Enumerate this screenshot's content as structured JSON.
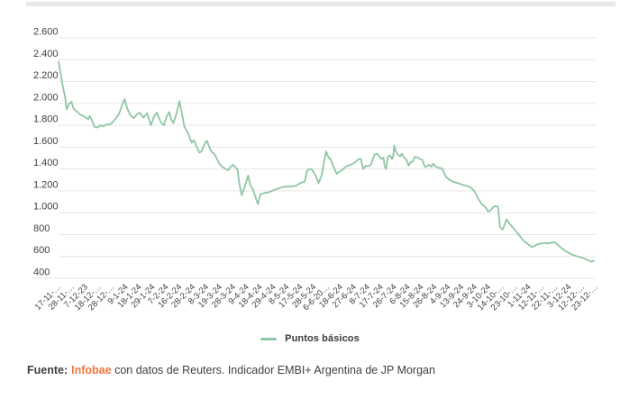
{
  "page": {
    "background": "#ffffff",
    "top_bar_color": "#e8e8e8"
  },
  "legend": {
    "label": "Puntos básicos",
    "swatch_color": "#8fc6a4"
  },
  "footer": {
    "prefix": "Fuente:",
    "brand": "Infobae",
    "rest": " con datos de Reuters. Indicador EMBI+ Argentina de JP Morgan",
    "brand_color": "#f4743b",
    "text_color": "#404040"
  },
  "chart_data": {
    "type": "line",
    "title": "",
    "xlabel": "",
    "ylabel": "",
    "legend_position": "bottom",
    "grid": "horizontal-only",
    "grid_color": "#e6e6e6",
    "axis_text_color": "#3f3f3f",
    "ylim": [
      400,
      2600
    ],
    "y_tick_values": [
      2600,
      2400,
      2200,
      2000,
      1800,
      1600,
      1400,
      1200,
      1000,
      800,
      600,
      400
    ],
    "y_tick_labels": [
      "2.600",
      "2.400",
      "2.200",
      "2.000",
      "1.800",
      "1.600",
      "1.400",
      "1.200",
      "1.000",
      "800",
      "600",
      "400"
    ],
    "x_tick_labels": [
      "17-11-…",
      "28-11-…",
      "7-12-23",
      "18-12-…",
      "28-12-…",
      "9-1-24",
      "18-1-24",
      "29-1-24",
      "7-2-24",
      "16-2-24",
      "28-2-24",
      "8-3-24",
      "19-3-24",
      "28-3-24",
      "9-4-24",
      "18-4-24",
      "29-4-24",
      "8-5-24",
      "17-5-24",
      "28-5-24",
      "6-6-20…",
      "18-6-24",
      "27-6-24",
      "8-7-24",
      "17-7-24",
      "26-7-24",
      "6-8-24",
      "15-8-24",
      "26-8-24",
      "4-9-24",
      "13-9-24",
      "24-9-24",
      "3-10-24",
      "14-10-…",
      "23-10-…",
      "1-11-24",
      "12-11-…",
      "22-11-…",
      "3-12-24",
      "12-12-…",
      "23-12-…"
    ],
    "series": [
      {
        "name": "Puntos básicos",
        "color": "#8fc6a4",
        "points": [
          [
            0,
            2380
          ],
          [
            0.004,
            2270
          ],
          [
            0.008,
            2150
          ],
          [
            0.012,
            2060
          ],
          [
            0.015,
            1945
          ],
          [
            0.02,
            2000
          ],
          [
            0.024,
            2015
          ],
          [
            0.028,
            1950
          ],
          [
            0.033,
            1930
          ],
          [
            0.04,
            1900
          ],
          [
            0.048,
            1880
          ],
          [
            0.055,
            1855
          ],
          [
            0.058,
            1885
          ],
          [
            0.062,
            1845
          ],
          [
            0.067,
            1785
          ],
          [
            0.073,
            1780
          ],
          [
            0.078,
            1800
          ],
          [
            0.084,
            1790
          ],
          [
            0.09,
            1810
          ],
          [
            0.095,
            1805
          ],
          [
            0.1,
            1825
          ],
          [
            0.106,
            1860
          ],
          [
            0.112,
            1900
          ],
          [
            0.117,
            1965
          ],
          [
            0.123,
            2040
          ],
          [
            0.128,
            1950
          ],
          [
            0.134,
            1890
          ],
          [
            0.14,
            1865
          ],
          [
            0.146,
            1900
          ],
          [
            0.151,
            1915
          ],
          [
            0.158,
            1870
          ],
          [
            0.165,
            1910
          ],
          [
            0.172,
            1800
          ],
          [
            0.178,
            1885
          ],
          [
            0.183,
            1915
          ],
          [
            0.19,
            1830
          ],
          [
            0.196,
            1800
          ],
          [
            0.202,
            1890
          ],
          [
            0.206,
            1920
          ],
          [
            0.21,
            1850
          ],
          [
            0.214,
            1820
          ],
          [
            0.22,
            1915
          ],
          [
            0.225,
            2020
          ],
          [
            0.23,
            1900
          ],
          [
            0.234,
            1790
          ],
          [
            0.238,
            1755
          ],
          [
            0.241,
            1730
          ],
          [
            0.244,
            1690
          ],
          [
            0.248,
            1640
          ],
          [
            0.252,
            1665
          ],
          [
            0.256,
            1615
          ],
          [
            0.262,
            1550
          ],
          [
            0.266,
            1560
          ],
          [
            0.271,
            1620
          ],
          [
            0.276,
            1660
          ],
          [
            0.28,
            1610
          ],
          [
            0.285,
            1555
          ],
          [
            0.29,
            1540
          ],
          [
            0.295,
            1490
          ],
          [
            0.3,
            1445
          ],
          [
            0.305,
            1420
          ],
          [
            0.311,
            1400
          ],
          [
            0.316,
            1390
          ],
          [
            0.32,
            1420
          ],
          [
            0.325,
            1440
          ],
          [
            0.329,
            1415
          ],
          [
            0.333,
            1400
          ],
          [
            0.336,
            1280
          ],
          [
            0.341,
            1160
          ],
          [
            0.346,
            1230
          ],
          [
            0.353,
            1340
          ],
          [
            0.357,
            1250
          ],
          [
            0.362,
            1210
          ],
          [
            0.371,
            1080
          ],
          [
            0.376,
            1170
          ],
          [
            0.383,
            1180
          ],
          [
            0.39,
            1185
          ],
          [
            0.4,
            1205
          ],
          [
            0.408,
            1220
          ],
          [
            0.417,
            1235
          ],
          [
            0.425,
            1240
          ],
          [
            0.433,
            1240
          ],
          [
            0.442,
            1245
          ],
          [
            0.45,
            1270
          ],
          [
            0.458,
            1285
          ],
          [
            0.463,
            1385
          ],
          [
            0.467,
            1400
          ],
          [
            0.472,
            1395
          ],
          [
            0.477,
            1355
          ],
          [
            0.481,
            1310
          ],
          [
            0.484,
            1270
          ],
          [
            0.49,
            1345
          ],
          [
            0.494,
            1460
          ],
          [
            0.498,
            1560
          ],
          [
            0.503,
            1500
          ],
          [
            0.506,
            1495
          ],
          [
            0.51,
            1440
          ],
          [
            0.515,
            1390
          ],
          [
            0.518,
            1355
          ],
          [
            0.524,
            1380
          ],
          [
            0.53,
            1400
          ],
          [
            0.536,
            1425
          ],
          [
            0.542,
            1435
          ],
          [
            0.548,
            1450
          ],
          [
            0.553,
            1465
          ],
          [
            0.558,
            1490
          ],
          [
            0.563,
            1490
          ],
          [
            0.567,
            1400
          ],
          [
            0.572,
            1430
          ],
          [
            0.577,
            1425
          ],
          [
            0.581,
            1435
          ],
          [
            0.588,
            1530
          ],
          [
            0.593,
            1540
          ],
          [
            0.597,
            1520
          ],
          [
            0.601,
            1490
          ],
          [
            0.605,
            1505
          ],
          [
            0.607,
            1425
          ],
          [
            0.61,
            1400
          ],
          [
            0.613,
            1510
          ],
          [
            0.617,
            1525
          ],
          [
            0.621,
            1490
          ],
          [
            0.623,
            1520
          ],
          [
            0.625,
            1615
          ],
          [
            0.628,
            1560
          ],
          [
            0.632,
            1530
          ],
          [
            0.636,
            1515
          ],
          [
            0.639,
            1540
          ],
          [
            0.643,
            1505
          ],
          [
            0.647,
            1490
          ],
          [
            0.652,
            1430
          ],
          [
            0.655,
            1460
          ],
          [
            0.66,
            1470
          ],
          [
            0.663,
            1510
          ],
          [
            0.669,
            1505
          ],
          [
            0.673,
            1490
          ],
          [
            0.677,
            1485
          ],
          [
            0.682,
            1420
          ],
          [
            0.686,
            1425
          ],
          [
            0.69,
            1440
          ],
          [
            0.694,
            1420
          ],
          [
            0.698,
            1450
          ],
          [
            0.702,
            1420
          ],
          [
            0.708,
            1410
          ],
          [
            0.714,
            1405
          ],
          [
            0.721,
            1330
          ],
          [
            0.728,
            1300
          ],
          [
            0.736,
            1280
          ],
          [
            0.744,
            1270
          ],
          [
            0.752,
            1255
          ],
          [
            0.76,
            1245
          ],
          [
            0.768,
            1230
          ],
          [
            0.775,
            1190
          ],
          [
            0.781,
            1130
          ],
          [
            0.788,
            1080
          ],
          [
            0.795,
            1050
          ],
          [
            0.8,
            1010
          ],
          [
            0.805,
            1025
          ],
          [
            0.809,
            1050
          ],
          [
            0.813,
            1060
          ],
          [
            0.818,
            1055
          ],
          [
            0.822,
            870
          ],
          [
            0.827,
            845
          ],
          [
            0.834,
            940
          ],
          [
            0.839,
            905
          ],
          [
            0.843,
            880
          ],
          [
            0.849,
            845
          ],
          [
            0.855,
            810
          ],
          [
            0.862,
            765
          ],
          [
            0.869,
            730
          ],
          [
            0.876,
            705
          ],
          [
            0.881,
            685
          ],
          [
            0.886,
            695
          ],
          [
            0.892,
            712
          ],
          [
            0.899,
            718
          ],
          [
            0.906,
            722
          ],
          [
            0.913,
            720
          ],
          [
            0.919,
            728
          ],
          [
            0.923,
            730
          ],
          [
            0.928,
            712
          ],
          [
            0.933,
            690
          ],
          [
            0.938,
            672
          ],
          [
            0.944,
            650
          ],
          [
            0.949,
            635
          ],
          [
            0.954,
            620
          ],
          [
            0.96,
            610
          ],
          [
            0.966,
            600
          ],
          [
            0.972,
            592
          ],
          [
            0.978,
            582
          ],
          [
            0.983,
            572
          ],
          [
            0.988,
            560
          ],
          [
            0.993,
            552
          ],
          [
            0.997,
            562
          ]
        ]
      }
    ]
  }
}
